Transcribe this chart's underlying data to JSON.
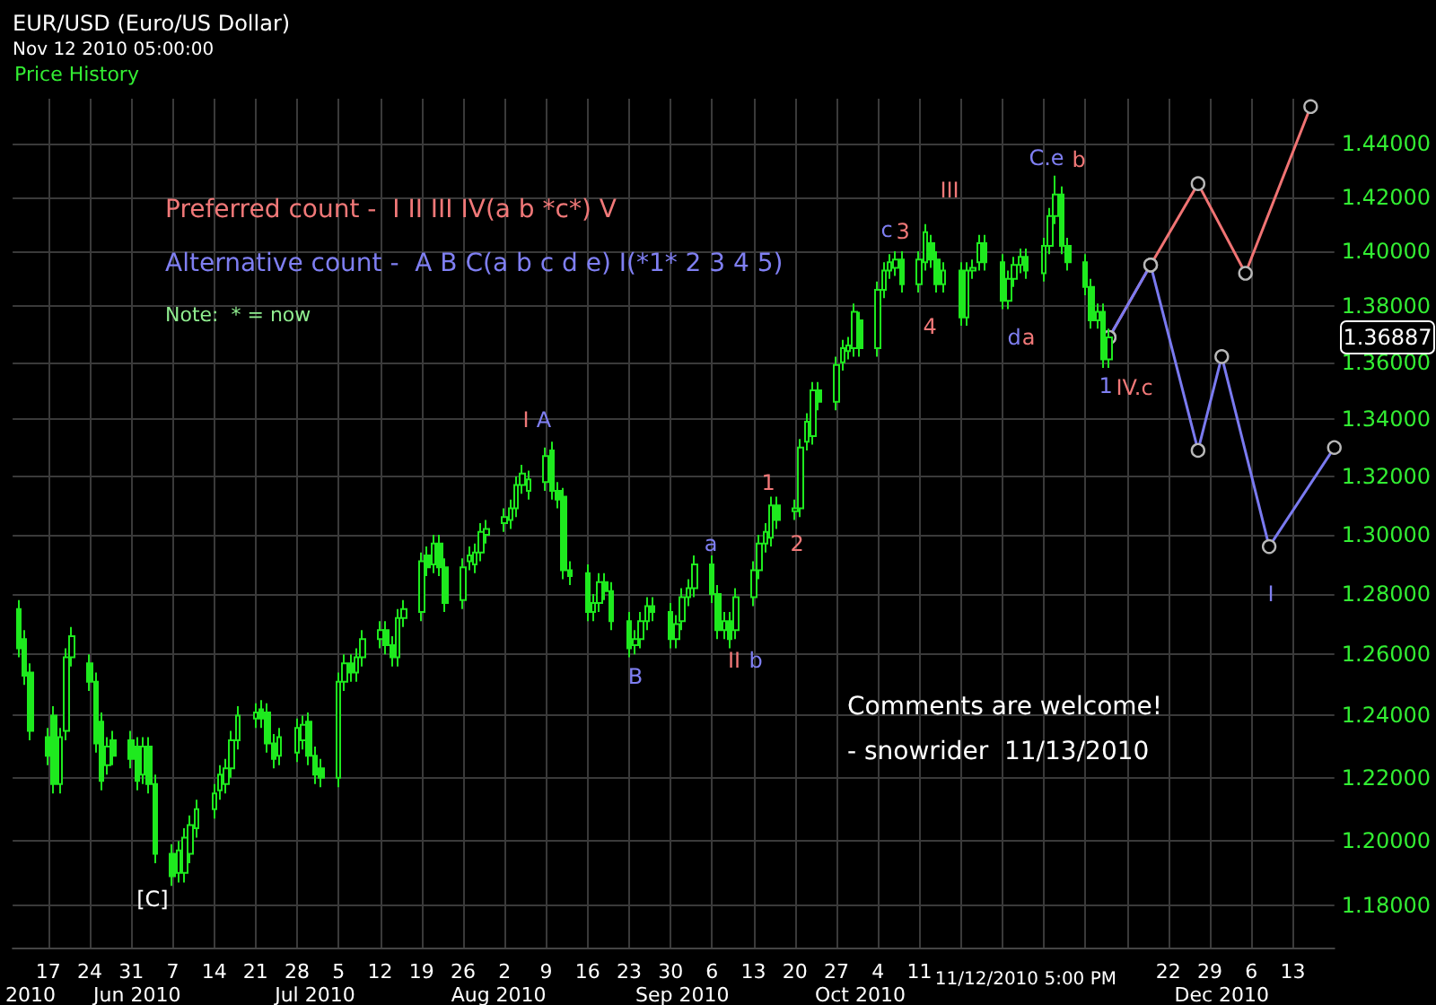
{
  "chart_data": {
    "type": "candlestick",
    "title": "EUR/USD (Euro/US Dollar)",
    "subtitle": "Nov 12 2010 05:00:00",
    "log": "y",
    "grid": true,
    "marker": "circle",
    "line_style": "solid",
    "xlim": [
      "2010-05-11",
      "2010-12-20"
    ],
    "xticks": [
      {
        "value": "2010-05-17",
        "label": "17"
      },
      {
        "value": "2010-05-24",
        "label": "24"
      },
      {
        "value": "2010-05-31",
        "label": "31"
      },
      {
        "value": "2010-06-07",
        "label": "7"
      },
      {
        "value": "2010-06-14",
        "label": "14"
      },
      {
        "value": "2010-06-21",
        "label": "21"
      },
      {
        "value": "2010-06-28",
        "label": "28"
      },
      {
        "value": "2010-07-05",
        "label": "5"
      },
      {
        "value": "2010-07-12",
        "label": "12"
      },
      {
        "value": "2010-07-19",
        "label": "19"
      },
      {
        "value": "2010-07-26",
        "label": "26"
      },
      {
        "value": "2010-08-02",
        "label": "2"
      },
      {
        "value": "2010-08-09",
        "label": "9"
      },
      {
        "value": "2010-08-16",
        "label": "16"
      },
      {
        "value": "2010-08-23",
        "label": "23"
      },
      {
        "value": "2010-08-30",
        "label": "30"
      },
      {
        "value": "2010-09-06",
        "label": "6"
      },
      {
        "value": "2010-09-13",
        "label": "13"
      },
      {
        "value": "2010-09-20",
        "label": "20"
      },
      {
        "value": "2010-09-27",
        "label": "27"
      },
      {
        "value": "2010-10-04",
        "label": "4"
      },
      {
        "value": "2010-10-11",
        "label": "11"
      },
      {
        "value": "2010-10-18",
        "label": null
      },
      {
        "value": "2010-10-25",
        "label": null
      },
      {
        "value": "2010-11-01",
        "label": null
      },
      {
        "value": "2010-11-08",
        "label": null
      },
      {
        "value": "2010-11-15",
        "label": null
      },
      {
        "value": "2010-11-22",
        "label": "22"
      },
      {
        "value": "2010-11-29",
        "label": "29"
      },
      {
        "value": "2010-12-06",
        "label": "6"
      },
      {
        "value": "2010-12-13",
        "label": "13"
      }
    ],
    "x2lim": [
      "2010-05-11",
      "2010-12-20"
    ],
    "x2ticks": [
      {
        "value": "2010-05-14",
        "label": "2010"
      },
      {
        "value": "2010-06-01",
        "label": "Jun 2010"
      },
      {
        "value": "2010-07-01",
        "label": "Jul 2010"
      },
      {
        "value": "2010-08-01",
        "label": "Aug 2010"
      },
      {
        "value": "2010-09-01",
        "label": "Sep 2010"
      },
      {
        "value": "2010-10-01",
        "label": "Oct 2010"
      },
      {
        "value": "2010-12-01",
        "label": "Dec 2010"
      }
    ],
    "ylim": [
      1.167,
      1.457
    ],
    "yticks": [
      {
        "value": 1.18,
        "label": "1.18000"
      },
      {
        "value": 1.2,
        "label": "1.20000"
      },
      {
        "value": 1.22,
        "label": "1.22000"
      },
      {
        "value": 1.24,
        "label": "1.24000"
      },
      {
        "value": 1.26,
        "label": "1.26000"
      },
      {
        "value": 1.28,
        "label": "1.28000"
      },
      {
        "value": 1.3,
        "label": "1.30000"
      },
      {
        "value": 1.32,
        "label": "1.32000"
      },
      {
        "value": 1.34,
        "label": "1.34000"
      },
      {
        "value": 1.36,
        "label": "1.36000"
      },
      {
        "value": 1.38,
        "label": "1.38000"
      },
      {
        "value": 1.4,
        "label": "1.40000"
      },
      {
        "value": 1.42,
        "label": "1.42000"
      },
      {
        "value": 1.44,
        "label": "1.44000"
      }
    ],
    "series": [
      {
        "type": "candlestick",
        "color": "#1eea1e",
        "x": [
          "2010-05-12",
          "2010-05-13",
          "2010-05-14",
          "2010-05-17",
          "2010-05-18",
          "2010-05-19",
          "2010-05-20",
          "2010-05-21",
          "2010-05-24",
          "2010-05-25",
          "2010-05-26",
          "2010-05-27",
          "2010-05-28",
          "2010-05-31",
          "2010-06-01",
          "2010-06-02",
          "2010-06-03",
          "2010-06-04",
          "2010-06-07",
          "2010-06-08",
          "2010-06-09",
          "2010-06-10",
          "2010-06-11",
          "2010-06-14",
          "2010-06-15",
          "2010-06-16",
          "2010-06-17",
          "2010-06-18",
          "2010-06-21",
          "2010-06-22",
          "2010-06-23",
          "2010-06-24",
          "2010-06-25",
          "2010-06-28",
          "2010-06-29",
          "2010-06-30",
          "2010-07-01",
          "2010-07-02",
          "2010-07-05",
          "2010-07-06",
          "2010-07-07",
          "2010-07-08",
          "2010-07-09",
          "2010-07-12",
          "2010-07-13",
          "2010-07-14",
          "2010-07-15",
          "2010-07-16",
          "2010-07-19",
          "2010-07-20",
          "2010-07-21",
          "2010-07-22",
          "2010-07-23",
          "2010-07-26",
          "2010-07-27",
          "2010-07-28",
          "2010-07-29",
          "2010-07-30",
          "2010-08-02",
          "2010-08-03",
          "2010-08-04",
          "2010-08-05",
          "2010-08-06",
          "2010-08-09",
          "2010-08-10",
          "2010-08-11",
          "2010-08-12",
          "2010-08-13",
          "2010-08-16",
          "2010-08-17",
          "2010-08-18",
          "2010-08-19",
          "2010-08-20",
          "2010-08-23",
          "2010-08-24",
          "2010-08-25",
          "2010-08-26",
          "2010-08-27",
          "2010-08-30",
          "2010-08-31",
          "2010-09-01",
          "2010-09-02",
          "2010-09-03",
          "2010-09-06",
          "2010-09-07",
          "2010-09-08",
          "2010-09-09",
          "2010-09-10",
          "2010-09-13",
          "2010-09-14",
          "2010-09-15",
          "2010-09-16",
          "2010-09-17",
          "2010-09-20",
          "2010-09-21",
          "2010-09-22",
          "2010-09-23",
          "2010-09-24",
          "2010-09-27",
          "2010-09-28",
          "2010-09-29",
          "2010-09-30",
          "2010-10-01",
          "2010-10-04",
          "2010-10-05",
          "2010-10-06",
          "2010-10-07",
          "2010-10-08",
          "2010-10-11",
          "2010-10-12",
          "2010-10-13",
          "2010-10-14",
          "2010-10-15",
          "2010-10-18",
          "2010-10-19",
          "2010-10-20",
          "2010-10-21",
          "2010-10-22",
          "2010-10-25",
          "2010-10-26",
          "2010-10-27",
          "2010-10-28",
          "2010-10-29",
          "2010-11-01",
          "2010-11-02",
          "2010-11-03",
          "2010-11-04",
          "2010-11-05",
          "2010-11-08",
          "2010-11-09",
          "2010-11-10",
          "2010-11-11",
          "2010-11-12"
        ],
        "ohlc": [
          [
            1.275,
            1.278,
            1.259,
            1.262
          ],
          [
            1.265,
            1.268,
            1.25,
            1.253
          ],
          [
            1.254,
            1.257,
            1.232,
            1.235
          ],
          [
            1.233,
            1.236,
            1.224,
            1.227
          ],
          [
            1.24,
            1.243,
            1.215,
            1.218
          ],
          [
            1.218,
            1.236,
            1.215,
            1.233
          ],
          [
            1.235,
            1.262,
            1.232,
            1.259
          ],
          [
            1.259,
            1.269,
            1.256,
            1.266
          ],
          [
            1.257,
            1.26,
            1.248,
            1.251
          ],
          [
            1.251,
            1.254,
            1.228,
            1.231
          ],
          [
            1.238,
            1.241,
            1.216,
            1.219
          ],
          [
            1.224,
            1.233,
            1.221,
            1.23
          ],
          [
            1.232,
            1.235,
            1.224,
            1.227
          ],
          [
            1.232,
            1.235,
            1.223,
            1.226
          ],
          [
            1.23,
            1.233,
            1.216,
            1.219
          ],
          [
            1.221,
            1.233,
            1.218,
            1.23
          ],
          [
            1.23,
            1.233,
            1.215,
            1.218
          ],
          [
            1.218,
            1.221,
            1.193,
            1.196
          ],
          [
            1.196,
            1.199,
            1.186,
            1.189
          ],
          [
            1.19,
            1.2,
            1.187,
            1.197
          ],
          [
            1.19,
            1.204,
            1.187,
            1.201
          ],
          [
            1.196,
            1.208,
            1.193,
            1.205
          ],
          [
            1.204,
            1.213,
            1.201,
            1.21
          ],
          [
            1.21,
            1.218,
            1.207,
            1.215
          ],
          [
            1.216,
            1.224,
            1.213,
            1.221
          ],
          [
            1.218,
            1.226,
            1.215,
            1.223
          ],
          [
            1.223,
            1.235,
            1.22,
            1.232
          ],
          [
            1.232,
            1.243,
            1.229,
            1.24
          ],
          [
            1.239,
            1.244,
            1.236,
            1.241
          ],
          [
            1.242,
            1.245,
            1.236,
            1.239
          ],
          [
            1.241,
            1.244,
            1.228,
            1.231
          ],
          [
            1.231,
            1.234,
            1.223,
            1.226
          ],
          [
            1.227,
            1.236,
            1.224,
            1.233
          ],
          [
            1.228,
            1.239,
            1.225,
            1.236
          ],
          [
            1.232,
            1.24,
            1.229,
            1.237
          ],
          [
            1.238,
            1.241,
            1.224,
            1.227
          ],
          [
            1.227,
            1.23,
            1.218,
            1.221
          ],
          [
            1.223,
            1.226,
            1.217,
            1.22
          ],
          [
            1.22,
            1.254,
            1.217,
            1.251
          ],
          [
            1.251,
            1.26,
            1.248,
            1.257
          ],
          [
            1.257,
            1.26,
            1.251,
            1.254
          ],
          [
            1.254,
            1.262,
            1.251,
            1.259
          ],
          [
            1.259,
            1.268,
            1.256,
            1.265
          ],
          [
            1.265,
            1.271,
            1.262,
            1.268
          ],
          [
            1.268,
            1.271,
            1.26,
            1.263
          ],
          [
            1.263,
            1.266,
            1.256,
            1.259
          ],
          [
            1.259,
            1.275,
            1.256,
            1.272
          ],
          [
            1.272,
            1.278,
            1.269,
            1.275
          ],
          [
            1.274,
            1.294,
            1.271,
            1.291
          ],
          [
            1.293,
            1.296,
            1.286,
            1.289
          ],
          [
            1.29,
            1.3,
            1.287,
            1.297
          ],
          [
            1.297,
            1.3,
            1.286,
            1.289
          ],
          [
            1.289,
            1.292,
            1.274,
            1.277
          ],
          [
            1.278,
            1.292,
            1.275,
            1.289
          ],
          [
            1.291,
            1.296,
            1.288,
            1.293
          ],
          [
            1.29,
            1.297,
            1.287,
            1.294
          ],
          [
            1.294,
            1.304,
            1.291,
            1.301
          ],
          [
            1.3,
            1.305,
            1.297,
            1.302
          ],
          [
            1.304,
            1.309,
            1.301,
            1.306
          ],
          [
            1.305,
            1.312,
            1.302,
            1.309
          ],
          [
            1.309,
            1.32,
            1.306,
            1.317
          ],
          [
            1.317,
            1.324,
            1.314,
            1.321
          ],
          [
            1.315,
            1.322,
            1.312,
            1.319
          ],
          [
            1.318,
            1.33,
            1.315,
            1.327
          ],
          [
            1.329,
            1.332,
            1.312,
            1.315
          ],
          [
            1.315,
            1.318,
            1.309,
            1.312
          ],
          [
            1.313,
            1.316,
            1.285,
            1.288
          ],
          [
            1.288,
            1.291,
            1.283,
            1.286
          ],
          [
            1.287,
            1.29,
            1.271,
            1.274
          ],
          [
            1.274,
            1.28,
            1.271,
            1.277
          ],
          [
            1.277,
            1.287,
            1.274,
            1.284
          ],
          [
            1.284,
            1.287,
            1.278,
            1.281
          ],
          [
            1.281,
            1.284,
            1.268,
            1.271
          ],
          [
            1.271,
            1.274,
            1.259,
            1.262
          ],
          [
            1.263,
            1.268,
            1.26,
            1.265
          ],
          [
            1.265,
            1.274,
            1.262,
            1.271
          ],
          [
            1.271,
            1.279,
            1.268,
            1.276
          ],
          [
            1.276,
            1.279,
            1.271,
            1.274
          ],
          [
            1.274,
            1.277,
            1.262,
            1.265
          ],
          [
            1.265,
            1.273,
            1.262,
            1.27
          ],
          [
            1.271,
            1.282,
            1.268,
            1.279
          ],
          [
            1.279,
            1.285,
            1.276,
            1.282
          ],
          [
            1.282,
            1.293,
            1.279,
            1.29
          ],
          [
            1.29,
            1.293,
            1.277,
            1.28
          ],
          [
            1.28,
            1.283,
            1.265,
            1.268
          ],
          [
            1.268,
            1.274,
            1.265,
            1.271
          ],
          [
            1.271,
            1.274,
            1.262,
            1.265
          ],
          [
            1.268,
            1.282,
            1.265,
            1.279
          ],
          [
            1.279,
            1.291,
            1.276,
            1.288
          ],
          [
            1.288,
            1.3,
            1.285,
            1.297
          ],
          [
            1.297,
            1.304,
            1.294,
            1.301
          ],
          [
            1.299,
            1.313,
            1.296,
            1.31
          ],
          [
            1.31,
            1.313,
            1.302,
            1.305
          ],
          [
            1.308,
            1.312,
            1.305,
            1.309
          ],
          [
            1.309,
            1.333,
            1.306,
            1.33
          ],
          [
            1.332,
            1.342,
            1.329,
            1.339
          ],
          [
            1.334,
            1.353,
            1.331,
            1.35
          ],
          [
            1.35,
            1.353,
            1.343,
            1.346
          ],
          [
            1.346,
            1.362,
            1.343,
            1.359
          ],
          [
            1.36,
            1.368,
            1.357,
            1.365
          ],
          [
            1.364,
            1.369,
            1.361,
            1.366
          ],
          [
            1.365,
            1.381,
            1.362,
            1.378
          ],
          [
            1.375,
            1.378,
            1.362,
            1.365
          ],
          [
            1.365,
            1.389,
            1.362,
            1.386
          ],
          [
            1.386,
            1.396,
            1.383,
            1.393
          ],
          [
            1.393,
            1.399,
            1.39,
            1.396
          ],
          [
            1.394,
            1.4,
            1.391,
            1.397
          ],
          [
            1.397,
            1.4,
            1.385,
            1.388
          ],
          [
            1.388,
            1.4,
            1.385,
            1.397
          ],
          [
            1.396,
            1.41,
            1.393,
            1.407
          ],
          [
            1.403,
            1.406,
            1.394,
            1.397
          ],
          [
            1.397,
            1.4,
            1.385,
            1.388
          ],
          [
            1.388,
            1.396,
            1.385,
            1.393
          ],
          [
            1.393,
            1.396,
            1.373,
            1.376
          ],
          [
            1.376,
            1.396,
            1.373,
            1.393
          ],
          [
            1.393,
            1.397,
            1.39,
            1.394
          ],
          [
            1.396,
            1.406,
            1.393,
            1.403
          ],
          [
            1.403,
            1.406,
            1.393,
            1.396
          ],
          [
            1.396,
            1.399,
            1.379,
            1.382
          ],
          [
            1.382,
            1.393,
            1.379,
            1.39
          ],
          [
            1.39,
            1.398,
            1.387,
            1.395
          ],
          [
            1.395,
            1.401,
            1.392,
            1.398
          ],
          [
            1.398,
            1.401,
            1.39,
            1.393
          ],
          [
            1.392,
            1.405,
            1.389,
            1.402
          ],
          [
            1.402,
            1.416,
            1.399,
            1.413
          ],
          [
            1.413,
            1.428,
            1.41,
            1.421
          ],
          [
            1.421,
            1.424,
            1.399,
            1.402
          ],
          [
            1.402,
            1.405,
            1.393,
            1.396
          ],
          [
            1.396,
            1.399,
            1.384,
            1.387
          ],
          [
            1.387,
            1.39,
            1.372,
            1.375
          ],
          [
            1.375,
            1.381,
            1.372,
            1.378
          ],
          [
            1.378,
            1.381,
            1.358,
            1.361
          ],
          [
            1.361,
            1.372,
            1.358,
            1.36887
          ]
        ]
      },
      {
        "type": "line",
        "color": "#f07373",
        "x": [
          "2010-11-12",
          "2010-11-19",
          "2010-11-27",
          "2010-12-05",
          "2010-12-16"
        ],
        "values": [
          1.36887,
          1.395,
          1.425,
          1.392,
          1.454
        ]
      },
      {
        "type": "line",
        "color": "#7a7af0",
        "x": [
          "2010-11-12",
          "2010-11-19",
          "2010-11-27",
          "2010-12-01",
          "2010-12-09",
          "2010-12-20"
        ],
        "values": [
          1.36887,
          1.395,
          1.329,
          1.362,
          1.296,
          1.33
        ]
      }
    ],
    "annotations": [
      "Price History",
      "Preferred count -  I II III IV(a b *c*) V",
      "Alternative count -  A B C(a b c d e) I(*1* 2 3 4 5)",
      "Note:  * = now",
      "Comments are welcome!",
      "- snowrider  11/13/2010",
      "[C]",
      "I",
      "A",
      "B",
      "a",
      "II",
      "b",
      "1",
      "2",
      "c",
      "3",
      "III",
      "4",
      "d",
      "a",
      "C.e",
      "b",
      "1",
      "IV.c",
      "I",
      "1.36887",
      "11/12/2010 5:00 PM"
    ]
  }
}
